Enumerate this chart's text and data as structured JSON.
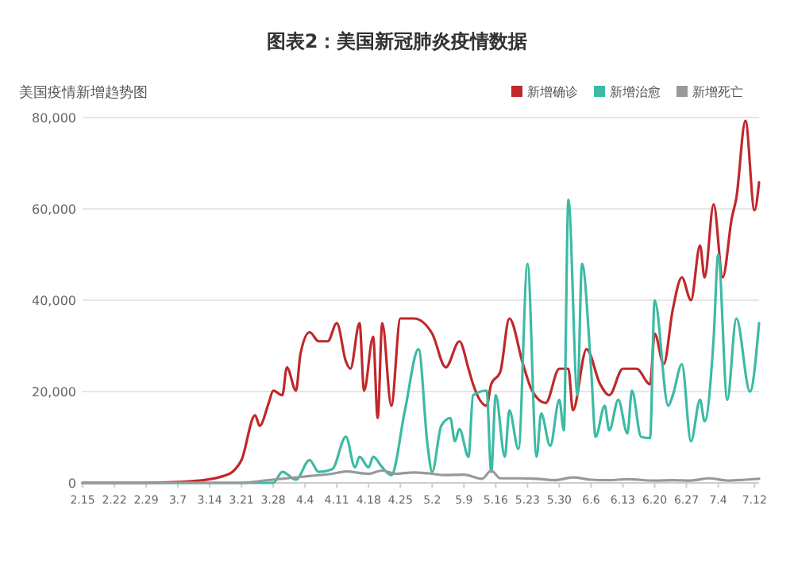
{
  "chart_data": {
    "type": "line",
    "title": "图表2：美国新冠肺炎疫情数据",
    "subtitle": "美国疫情新增趋势图",
    "xlim": [
      "--02-15",
      "--07-13"
    ],
    "xticks": [
      {
        "value": "--02-15",
        "label": "2.15"
      },
      {
        "value": "--02-22",
        "label": "2.22"
      },
      {
        "value": "--02-29",
        "label": "2.29"
      },
      {
        "value": "--03-07",
        "label": "3.7"
      },
      {
        "value": "--03-14",
        "label": "3.14"
      },
      {
        "value": "--03-21",
        "label": "3.21"
      },
      {
        "value": "--03-28",
        "label": "3.28"
      },
      {
        "value": "--04-04",
        "label": "4.4"
      },
      {
        "value": "--04-11",
        "label": "4.11"
      },
      {
        "value": "--04-18",
        "label": "4.18"
      },
      {
        "value": "--04-25",
        "label": "4.25"
      },
      {
        "value": "--05-02",
        "label": "5.2"
      },
      {
        "value": "--05-09",
        "label": "5.9"
      },
      {
        "value": "--05-16",
        "label": "5.16"
      },
      {
        "value": "--05-23",
        "label": "5.23"
      },
      {
        "value": "--05-30",
        "label": "5.30"
      },
      {
        "value": "--06-06",
        "label": "6.6"
      },
      {
        "value": "--06-13",
        "label": "6.13"
      },
      {
        "value": "--06-20",
        "label": "6.20"
      },
      {
        "value": "--06-27",
        "label": "6.27"
      },
      {
        "value": "--07-04",
        "label": "7.4"
      },
      {
        "value": "--07-12",
        "label": "7.12"
      }
    ],
    "ylim": [
      0,
      80000
    ],
    "yticks": [
      {
        "value": 0,
        "label": "0"
      },
      {
        "value": 20000,
        "label": "20,000"
      },
      {
        "value": 40000,
        "label": "40,000"
      },
      {
        "value": 60000,
        "label": "60,000"
      },
      {
        "value": 80000,
        "label": "80,000"
      }
    ],
    "grid": "y",
    "legend": "top right",
    "series": [
      {
        "name": "新增确诊",
        "color": "#c0282b",
        "x": [
          "--02-15",
          "--02-29",
          "--03-07",
          "--03-14",
          "--03-17",
          "--03-19",
          "--03-21",
          "--03-24",
          "--03-25",
          "--03-27",
          "--03-28",
          "--03-30",
          "--03-31",
          "--04-02",
          "--04-03",
          "--04-05",
          "--04-07",
          "--04-09",
          "--04-11",
          "--04-13",
          "--04-14",
          "--04-16",
          "--04-17",
          "--04-19",
          "--04-20",
          "--04-21",
          "--04-23",
          "--04-25",
          "--04-28",
          "--05-02",
          "--05-05",
          "--05-08",
          "--05-10",
          "--05-11",
          "--05-14",
          "--05-15",
          "--05-17",
          "--05-19",
          "--05-22",
          "--05-24",
          "--05-27",
          "--05-30",
          "--06-01",
          "--06-02",
          "--06-05",
          "--06-08",
          "--06-10",
          "--06-13",
          "--06-16",
          "--06-19",
          "--06-20",
          "--06-22",
          "--06-24",
          "--06-26",
          "--06-28",
          "--06-30",
          "--07-01",
          "--07-03",
          "--07-05",
          "--07-07",
          "--07-08",
          "--07-10",
          "--07-12",
          "--07-13"
        ],
        "values": [
          0,
          0,
          200,
          800,
          1500,
          2400,
          5000,
          14800,
          12500,
          17500,
          20200,
          19200,
          25300,
          20200,
          28300,
          33000,
          31000,
          31000,
          35000,
          26600,
          25000,
          35000,
          20200,
          32000,
          14200,
          35000,
          16900,
          36000,
          36000,
          32700,
          25300,
          31000,
          25000,
          21600,
          16900,
          21600,
          24300,
          36000,
          26000,
          20200,
          17500,
          25000,
          25000,
          15900,
          29300,
          21600,
          19200,
          25000,
          25000,
          21600,
          32700,
          26000,
          38000,
          45000,
          40000,
          52000,
          45000,
          61000,
          45000,
          58000,
          62400,
          79300,
          59700,
          65800
        ]
      },
      {
        "name": "新增治愈",
        "color": "#3dbaa4",
        "x": [
          "--02-15",
          "--03-28",
          "--03-30",
          "--04-02",
          "--04-05",
          "--04-07",
          "--04-10",
          "--04-13",
          "--04-15",
          "--04-16",
          "--04-18",
          "--04-19",
          "--04-21",
          "--04-23",
          "--04-26",
          "--04-29",
          "--05-01",
          "--05-02",
          "--05-04",
          "--05-06",
          "--05-07",
          "--05-08",
          "--05-10",
          "--05-11",
          "--05-14",
          "--05-15",
          "--05-16",
          "--05-18",
          "--05-19",
          "--05-21",
          "--05-23",
          "--05-25",
          "--05-26",
          "--05-28",
          "--05-30",
          "--05-31",
          "--06-01",
          "--06-03",
          "--06-04",
          "--06-06",
          "--06-07",
          "--06-09",
          "--06-10",
          "--06-12",
          "--06-14",
          "--06-15",
          "--06-17",
          "--06-19",
          "--06-20",
          "--06-23",
          "--06-24",
          "--06-26",
          "--06-28",
          "--06-30",
          "--07-01",
          "--07-03",
          "--07-04",
          "--07-06",
          "--07-08",
          "--07-11",
          "--07-13"
        ],
        "values": [
          0,
          0,
          2400,
          700,
          5000,
          2400,
          3000,
          10100,
          3400,
          5700,
          3400,
          5700,
          3400,
          1700,
          15900,
          29300,
          8100,
          2400,
          12500,
          14200,
          9100,
          11800,
          5700,
          19200,
          20200,
          2400,
          19200,
          5700,
          15900,
          7400,
          48000,
          5700,
          15200,
          8100,
          18200,
          11500,
          62000,
          19200,
          48000,
          25000,
          10100,
          16900,
          11500,
          18200,
          10800,
          20200,
          10100,
          9800,
          40000,
          16900,
          19200,
          26000,
          9100,
          18200,
          13500,
          31700,
          50000,
          18200,
          36000,
          20000,
          35000
        ]
      },
      {
        "name": "新增死亡",
        "color": "#999999",
        "x": [
          "--02-15",
          "--03-21",
          "--03-26",
          "--03-31",
          "--04-05",
          "--04-10",
          "--04-13",
          "--04-18",
          "--04-21",
          "--04-24",
          "--04-28",
          "--05-01",
          "--05-05",
          "--05-09",
          "--05-13",
          "--05-15",
          "--05-17",
          "--05-21",
          "--05-25",
          "--05-29",
          "--06-02",
          "--06-06",
          "--06-10",
          "--06-14",
          "--06-20",
          "--06-24",
          "--06-28",
          "--07-02",
          "--07-06",
          "--07-10",
          "--07-13"
        ],
        "values": [
          0,
          0,
          500,
          1000,
          1500,
          2000,
          2500,
          2000,
          2700,
          2000,
          2300,
          2100,
          1700,
          1800,
          900,
          2700,
          1000,
          1000,
          900,
          600,
          1200,
          700,
          600,
          800,
          500,
          600,
          500,
          1000,
          500,
          700,
          900
        ]
      }
    ]
  }
}
